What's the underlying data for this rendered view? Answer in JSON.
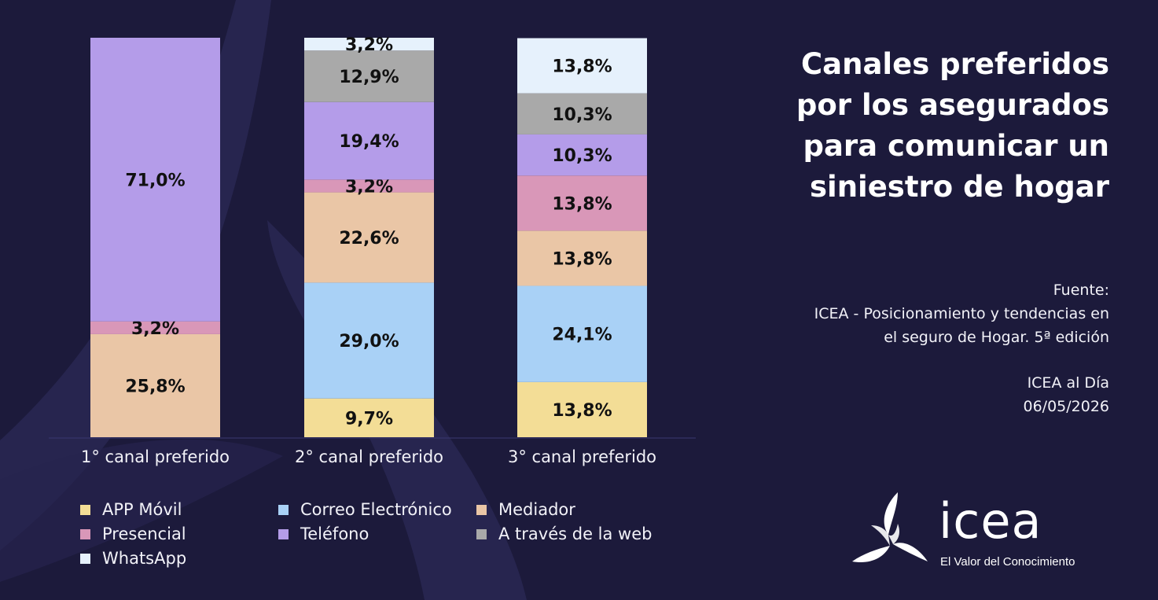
{
  "header": {
    "title": "Canales preferidos\npor los asegurados\npara comunicar un\nsiniestro de hogar"
  },
  "source": {
    "label": "Fuente:",
    "line1": "ICEA - Posicionamiento y tendencias en",
    "line2": "el seguro de Hogar. 5ª edición"
  },
  "footer": {
    "publication": "ICEA al Día",
    "date": "06/05/2026"
  },
  "logo": {
    "wordmark": "icea",
    "tagline": "El Valor del Conocimiento"
  },
  "colors": {
    "background": "#1c1a3b",
    "APP Móvil": "#f3dd96",
    "Correo Electrónico": "#a9d1f6",
    "Mediador": "#eac6a6",
    "Presencial": "#d997b8",
    "Teléfono": "#b49ce9",
    "A través de la web": "#a9a9a9",
    "WhatsApp": "#e6f1fc"
  },
  "chart_data": {
    "type": "bar",
    "stacked": true,
    "categories": [
      "1° canal preferido",
      "2° canal preferido",
      "3° canal preferido"
    ],
    "series": [
      {
        "name": "APP Móvil",
        "values": [
          0,
          9.7,
          13.8
        ],
        "labels": [
          "",
          "9,7%",
          "13,8%"
        ]
      },
      {
        "name": "Correo Electrónico",
        "values": [
          0,
          29.0,
          24.1
        ],
        "labels": [
          "",
          "29,0%",
          "24,1%"
        ]
      },
      {
        "name": "Mediador",
        "values": [
          25.8,
          22.6,
          13.8
        ],
        "labels": [
          "25,8%",
          "22,6%",
          "13,8%"
        ]
      },
      {
        "name": "Presencial",
        "values": [
          3.2,
          3.2,
          13.8
        ],
        "labels": [
          "3,2%",
          "3,2%",
          "13,8%"
        ]
      },
      {
        "name": "Teléfono",
        "values": [
          71.0,
          19.4,
          10.3
        ],
        "labels": [
          "71,0%",
          "19,4%",
          "10,3%"
        ]
      },
      {
        "name": "A través de la web",
        "values": [
          0,
          12.9,
          10.3
        ],
        "labels": [
          "",
          "12,9%",
          "10,3%"
        ]
      },
      {
        "name": "WhatsApp",
        "values": [
          0,
          3.2,
          13.8
        ],
        "labels": [
          "",
          "3,2%",
          "13,8%"
        ]
      }
    ],
    "ylim": [
      0,
      100
    ],
    "grid": false,
    "legend_position": "bottom-left"
  }
}
